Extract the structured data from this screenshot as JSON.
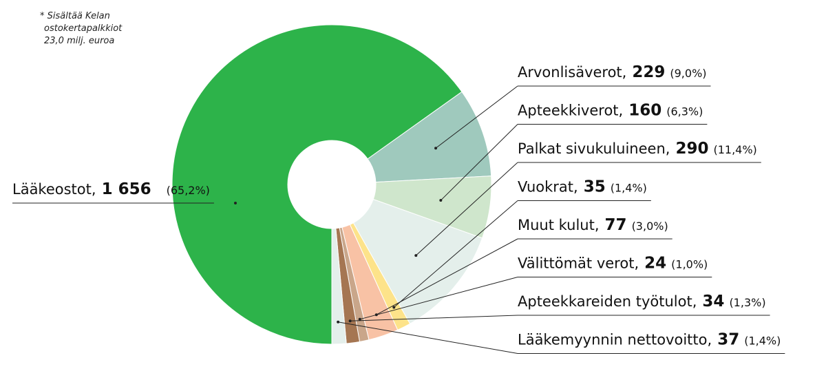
{
  "chart_data": {
    "type": "donut",
    "note": [
      "* Sisältää Kelan",
      "ostokertapalkkiot",
      "23,0 milj. euroa"
    ],
    "separator": ",",
    "categories": [
      "Lääkeostot",
      "Arvonlisäverot",
      "Apteekkiverot",
      "Palkat sivukuluineen",
      "Vuokrat",
      "Muut kulut",
      "Välittömät verot",
      "Apteekkareiden työtulot",
      "Lääkemyynnin nettovoitto"
    ],
    "values": [
      1656,
      229,
      160,
      290,
      35,
      77,
      24,
      34,
      37
    ],
    "value_labels": [
      "1 656",
      "229",
      "160",
      "290",
      "35",
      "77",
      "24",
      "34",
      "37"
    ],
    "percent_labels": [
      "(65,2%)",
      "(9,0%)",
      "(6,3%)",
      "(11,4%)",
      "(1,4%)",
      "(3,0%)",
      "(1,0%)",
      "(1,3%)",
      "(1,4%)"
    ],
    "colors": [
      "#2db34a",
      "#9fc9bd",
      "#cfe6cc",
      "#e4efeb",
      "#fde38a",
      "#f8c2a5",
      "#c9a68a",
      "#a57652",
      "#e4efeb"
    ]
  }
}
